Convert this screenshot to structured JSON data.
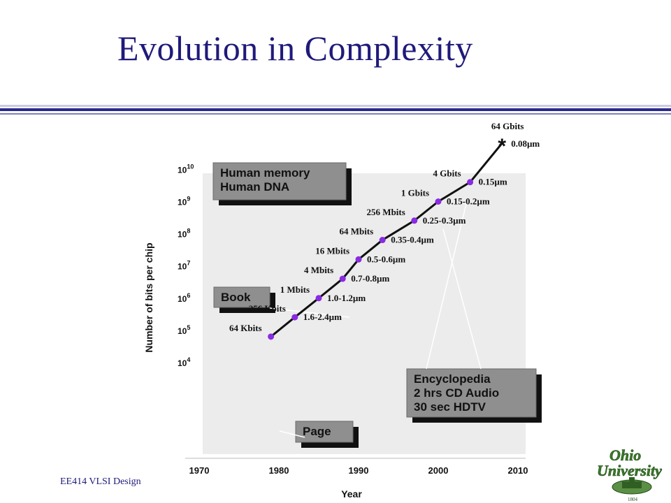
{
  "slide": {
    "title": "Evolution in Complexity",
    "footer": "EE414 VLSI Design",
    "colors": {
      "title": "#1f1a7a",
      "rule": "#2a2a8c",
      "logo_green": "#3a7a2a"
    }
  },
  "logo": {
    "line1": "Ohio",
    "line2": "University",
    "year": "1804"
  },
  "chart_data": {
    "type": "line",
    "title": "",
    "xlabel": "Year",
    "ylabel": "Number of bits per chip",
    "xlim": [
      1970,
      2010
    ],
    "x_ticks": [
      1970,
      1980,
      1990,
      2000,
      2010
    ],
    "y_scale": "log",
    "y_ticks": [
      {
        "label": "10",
        "exp": "4"
      },
      {
        "label": "10",
        "exp": "5"
      },
      {
        "label": "10",
        "exp": "6"
      },
      {
        "label": "10",
        "exp": "7"
      },
      {
        "label": "10",
        "exp": "8"
      },
      {
        "label": "10",
        "exp": "9"
      },
      {
        "label": "10",
        "exp": "10"
      }
    ],
    "grid": false,
    "series": [
      {
        "points": [
          {
            "year": 1979,
            "bits": "64 Kbits",
            "feature": ""
          },
          {
            "year": 1982,
            "bits": "256 Kbits",
            "feature": "1.6-2.4µm"
          },
          {
            "year": 1985,
            "bits": "1 Mbits",
            "feature": "1.0-1.2µm"
          },
          {
            "year": 1988,
            "bits": "4 Mbits",
            "feature": "0.7-0.8µm"
          },
          {
            "year": 1990,
            "bits": "16 Mbits",
            "feature": "0.5-0.6µm"
          },
          {
            "year": 1993,
            "bits": "64 Mbits",
            "feature": "0.35-0.4µm"
          },
          {
            "year": 1997,
            "bits": "256 Mbits",
            "feature": "0.25-0.3µm"
          },
          {
            "year": 2000,
            "bits": "1 Gbits",
            "feature": "0.15-0.2µm"
          },
          {
            "year": 2004,
            "bits": "4 Gbits",
            "feature": "0.15µm"
          },
          {
            "year": 2008,
            "bits": "64 Gbits",
            "feature": "0.08µm"
          }
        ]
      }
    ],
    "annotations": [
      {
        "lines": [
          "Human memory",
          "Human DNA"
        ]
      },
      {
        "lines": [
          "Book"
        ]
      },
      {
        "lines": [
          "Page"
        ]
      },
      {
        "lines": [
          "Encyclopedia",
          "2 hrs CD Audio",
          "30 sec HDTV"
        ]
      }
    ],
    "colors": {
      "plot_bg": "#ececec",
      "marker": "#8a2be2",
      "box": "#8f8f8f",
      "box_shadow": "#111111"
    }
  }
}
